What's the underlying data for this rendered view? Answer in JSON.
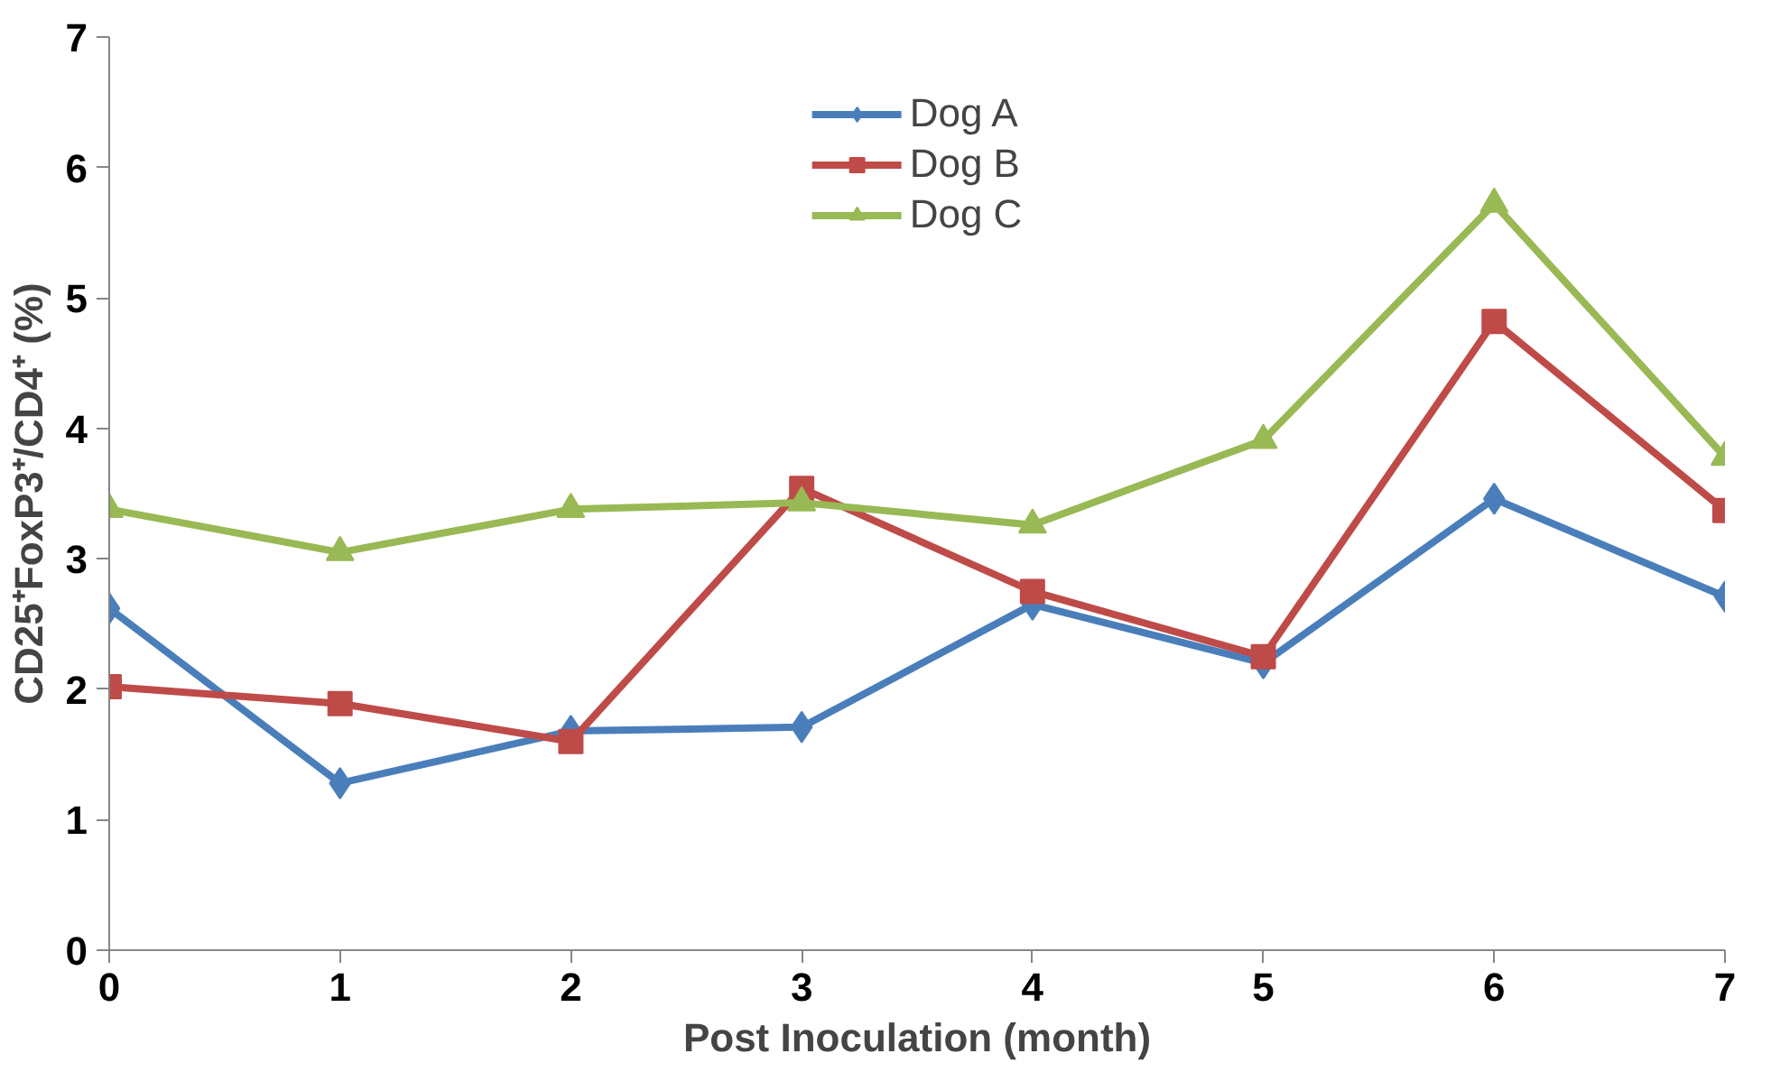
{
  "chart_data": {
    "type": "line",
    "xlabel": "Post Inoculation (month)",
    "ylabel": "CD25⁺FoxP3⁺/CD4⁺ (%)",
    "x": [
      0,
      1,
      2,
      3,
      4,
      5,
      6,
      7
    ],
    "xlim": [
      0,
      7
    ],
    "xticks": [
      0,
      1,
      2,
      3,
      4,
      5,
      6,
      7
    ],
    "ylim": [
      0,
      7
    ],
    "yticks": [
      0,
      1,
      2,
      3,
      4,
      5,
      6,
      7
    ],
    "grid": false,
    "legend": "top",
    "line_style": "solid",
    "series": [
      {
        "name": "Dog A",
        "color": "#4a7ebb",
        "marker": "diamond",
        "values": [
          2.62,
          1.28,
          1.68,
          1.71,
          2.65,
          2.2,
          3.46,
          2.71
        ]
      },
      {
        "name": "Dog B",
        "color": "#be4b48",
        "marker": "square",
        "values": [
          2.02,
          1.89,
          1.6,
          3.54,
          2.75,
          2.25,
          4.82,
          3.37
        ]
      },
      {
        "name": "Dog C",
        "color": "#98b954",
        "marker": "triangle",
        "values": [
          3.38,
          3.05,
          3.38,
          3.43,
          3.26,
          3.91,
          5.72,
          3.78
        ]
      }
    ]
  }
}
